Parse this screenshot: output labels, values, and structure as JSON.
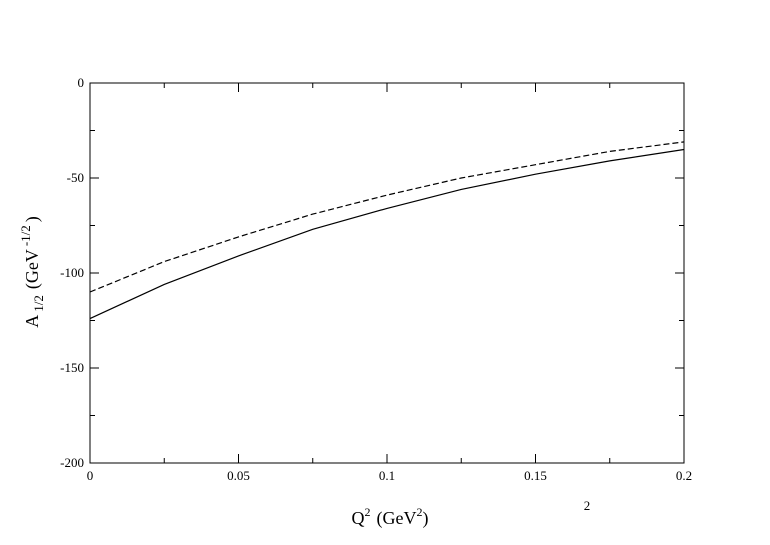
{
  "chart_data": {
    "type": "line",
    "x": [
      0,
      0.025,
      0.05,
      0.075,
      0.1,
      0.125,
      0.15,
      0.175,
      0.2
    ],
    "series": [
      {
        "color": "#000000",
        "dashed": false,
        "values": [
          -124,
          -106,
          -91,
          -77,
          -66,
          -56,
          -48,
          -41,
          -35
        ]
      },
      {
        "color": "#000000",
        "dashed": true,
        "values": [
          -110,
          -94,
          -81,
          -69,
          -59,
          -50,
          -43,
          -36,
          -31
        ]
      }
    ],
    "xlim": [
      0,
      0.2
    ],
    "xticks": [
      0,
      0.05,
      0.1,
      0.15,
      0.2
    ],
    "xminorticks": [
      0.025,
      0.075,
      0.125,
      0.175
    ],
    "ylim": [
      -200,
      0
    ],
    "yticks": [
      -200,
      -150,
      -100,
      -50,
      0
    ],
    "yminorticks": [
      -175,
      -125,
      -75,
      -25
    ],
    "xlabel": {
      "main": "Q",
      "sup": "2",
      "unit": "(GeV",
      "unit_sup": "2",
      "close": ")"
    },
    "ylabel": {
      "main": "A",
      "sub": "1/2",
      "unit": "(GeV",
      "unit_sup": "-1/2",
      "close": ")"
    },
    "annotation": "2",
    "grid": false
  }
}
